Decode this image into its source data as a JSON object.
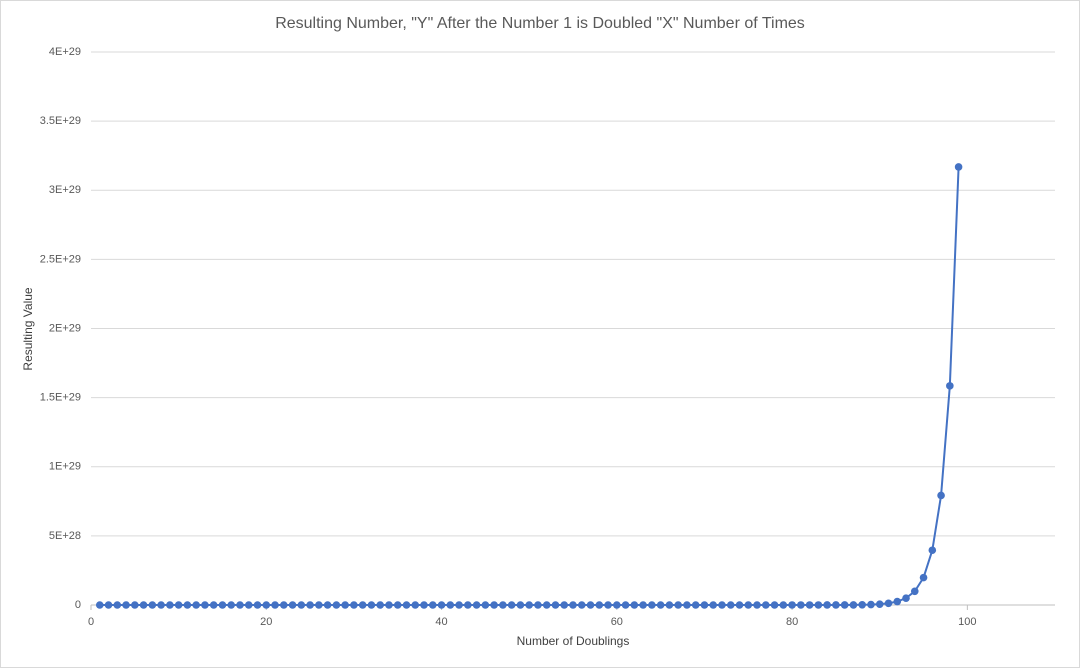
{
  "chart_data": {
    "type": "line",
    "title": "Resulting Number, \"Y\" After the Number 1 is Doubled \"X\" Number of Times",
    "x_label": "Number of Doublings",
    "y_label": "Resulting Value",
    "xlim": [
      0,
      110
    ],
    "xticks": [
      0,
      20,
      40,
      60,
      80,
      100
    ],
    "ylim": [
      0,
      4e+29
    ],
    "yticks": [
      0,
      {
        "value": 5e+28,
        "label": "5E+28"
      },
      {
        "value": 1e+29,
        "label": "1E+29"
      },
      {
        "value": 1.5e+29,
        "label": "1.5E+29"
      },
      {
        "value": 2e+29,
        "label": "2E+29"
      },
      {
        "value": 2.5e+29,
        "label": "2.5E+29"
      },
      {
        "value": 3e+29,
        "label": "3E+29"
      },
      {
        "value": 3.5e+29,
        "label": "3.5E+29"
      },
      {
        "value": 4e+29,
        "label": "4E+29"
      }
    ],
    "grid": true,
    "x": [
      1,
      2,
      3,
      4,
      5,
      6,
      7,
      8,
      9,
      10,
      11,
      12,
      13,
      14,
      15,
      16,
      17,
      18,
      19,
      20,
      21,
      22,
      23,
      24,
      25,
      26,
      27,
      28,
      29,
      30,
      31,
      32,
      33,
      34,
      35,
      36,
      37,
      38,
      39,
      40,
      41,
      42,
      43,
      44,
      45,
      46,
      47,
      48,
      49,
      50,
      51,
      52,
      53,
      54,
      55,
      56,
      57,
      58,
      59,
      60,
      61,
      62,
      63,
      64,
      65,
      66,
      67,
      68,
      69,
      70,
      71,
      72,
      73,
      74,
      75,
      76,
      77,
      78,
      79,
      80,
      81,
      82,
      83,
      84,
      85,
      86,
      87,
      88,
      89,
      90,
      91,
      92,
      93,
      94,
      95,
      96,
      97,
      98,
      99
    ],
    "series": [
      {
        "color": "#4472c4",
        "values": [
          1,
          2,
          4,
          8,
          16,
          32,
          64,
          128,
          256,
          512,
          1024,
          2048,
          4096,
          8192,
          16384,
          32768,
          65536,
          131072,
          262144,
          524288,
          1048576,
          2097152,
          4194304,
          8388608,
          16777216,
          33554432,
          67108864,
          134217728,
          268435456,
          536870912,
          1073741824,
          2147483648,
          4294967296,
          8589934592,
          17179869184,
          34359738368,
          68719476736,
          137438953472,
          274877906944,
          549755813888,
          1099511627776,
          2199000000000.0,
          4398000000000.0,
          8796000000000.0,
          17590000000000.0,
          35180000000000.0,
          70370000000000.0,
          140700000000000.0,
          281500000000000.0,
          562900000000000.0,
          1126000000000000.0,
          2252000000000000.0,
          4504000000000000.0,
          9007000000000000.0,
          1.801e+16,
          3.603e+16,
          7.206e+16,
          1.441e+17,
          2.882e+17,
          5.765e+17,
          1.153e+18,
          2.306e+18,
          4.612e+18,
          9.223e+18,
          1.845e+19,
          3.689e+19,
          7.379e+19,
          1.476e+20,
          2.951e+20,
          5.903e+20,
          1.181e+21,
          2.361e+21,
          4.722e+21,
          9.445e+21,
          1.889e+22,
          3.778e+22,
          7.556e+22,
          1.511e+23,
          3.022e+23,
          6.045e+23,
          1.209e+24,
          2.418e+24,
          4.836e+24,
          9.671e+24,
          1.934e+25,
          3.869e+25,
          7.737e+25,
          1.547e+26,
          3.095e+26,
          6.19e+26,
          1.238e+27,
          2.476e+27,
          4.952e+27,
          9.904e+27,
          1.981e+28,
          3.961e+28,
          7.923e+28,
          1.585e+29,
          3.169e+29
        ]
      }
    ]
  }
}
